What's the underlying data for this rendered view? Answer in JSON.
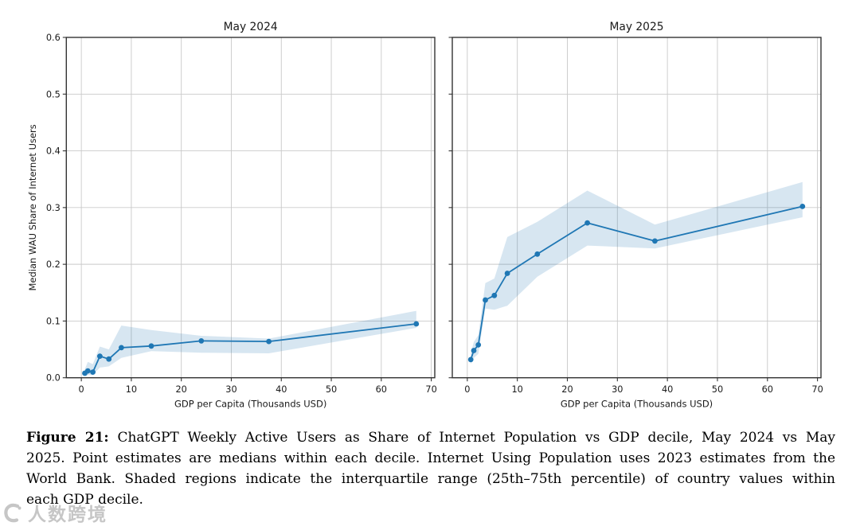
{
  "caption": {
    "label": "Figure 21:",
    "lines": [
      "ChatGPT Weekly Active Users as Share of Internet Population vs GDP decile, May 2024 vs May",
      "2025. Point estimates are medians within each decile. Internet Using Population uses 2023 estimates from the",
      "World Bank. Shaded regions indicate the interquartile range (25th–75th percentile) of country values within",
      "each GDP decile."
    ]
  },
  "watermark": {
    "text": "人数跨境",
    "color": "#8f8f8f"
  },
  "colors": {
    "line": "#1f77b4",
    "band": "#1f77b4",
    "grid": "#c9c9c9",
    "spine": "#333333",
    "text": "#1a1a1a"
  },
  "chart_data": [
    {
      "type": "line",
      "title": "May 2024",
      "xlabel": "GDP per Capita (Thousands USD)",
      "ylabel": "Median WAU Share of Internet Users",
      "legend": null,
      "grid": true,
      "xlim": [
        -3,
        70.7
      ],
      "ylim": [
        0,
        0.6
      ],
      "xticks": [
        0,
        10,
        20,
        30,
        40,
        50,
        60,
        70
      ],
      "yticks": [
        "0.0",
        "0.1",
        "0.2",
        "0.3",
        "0.4",
        "0.5",
        "0.6"
      ],
      "show_ytick_labels": true,
      "x": [
        0.7,
        1.3,
        2.3,
        3.7,
        5.5,
        8,
        14,
        24,
        37.5,
        67
      ],
      "y": [
        0.008,
        0.012,
        0.01,
        0.038,
        0.033,
        0.053,
        0.056,
        0.065,
        0.064,
        0.095
      ],
      "band_lower": [
        0.002,
        0.005,
        0.005,
        0.018,
        0.02,
        0.035,
        0.047,
        0.044,
        0.043,
        0.088
      ],
      "band_upper": [
        0.015,
        0.028,
        0.024,
        0.055,
        0.05,
        0.092,
        0.084,
        0.074,
        0.069,
        0.118
      ]
    },
    {
      "type": "line",
      "title": "May 2025",
      "xlabel": "GDP per Capita (Thousands USD)",
      "ylabel": "",
      "legend": null,
      "grid": true,
      "xlim": [
        -3,
        70.7
      ],
      "ylim": [
        0,
        0.6
      ],
      "xticks": [
        0,
        10,
        20,
        30,
        40,
        50,
        60,
        70
      ],
      "yticks": [
        "0.0",
        "0.1",
        "0.2",
        "0.3",
        "0.4",
        "0.5",
        "0.6"
      ],
      "show_ytick_labels": false,
      "x": [
        0.7,
        1.3,
        2.2,
        3.6,
        5.4,
        8,
        14,
        24,
        37.5,
        67
      ],
      "y": [
        0.032,
        0.048,
        0.058,
        0.137,
        0.145,
        0.184,
        0.218,
        0.273,
        0.241,
        0.302
      ],
      "band_lower": [
        0.024,
        0.035,
        0.042,
        0.122,
        0.12,
        0.127,
        0.178,
        0.233,
        0.228,
        0.283
      ],
      "band_upper": [
        0.042,
        0.063,
        0.075,
        0.167,
        0.175,
        0.248,
        0.275,
        0.33,
        0.27,
        0.345
      ]
    }
  ]
}
